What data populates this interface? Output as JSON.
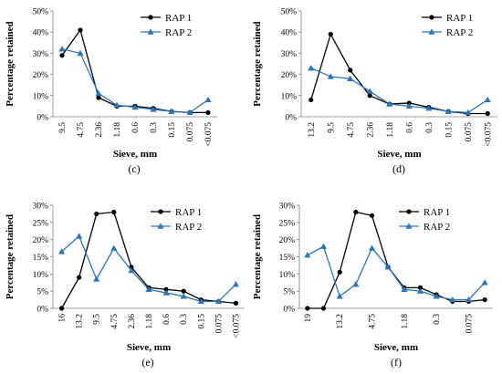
{
  "chart_data": [
    {
      "panel": "c",
      "type": "line",
      "caption": "(c)",
      "categories": [
        "9.5",
        "4.75",
        "2.36",
        "1.18",
        "0.6",
        "0.3",
        "0.15",
        "0.075",
        "<0.075"
      ],
      "ylabel": "Percentage retained",
      "xlabel": "Sieve, mm",
      "ylim": [
        0,
        50
      ],
      "yticks": [
        "0%",
        "10%",
        "20%",
        "30%",
        "40%",
        "50%"
      ],
      "yticks_values": [
        0,
        10,
        20,
        30,
        40,
        50
      ],
      "legend": "top-right",
      "series": [
        {
          "name": "RAP 1",
          "color": "#000000",
          "marker": "circle",
          "values": [
            29,
            41,
            9,
            5,
            5,
            4,
            2.5,
            2,
            2
          ]
        },
        {
          "name": "RAP 2",
          "color": "#2e75b6",
          "marker": "triangle",
          "values": [
            32,
            30,
            11,
            5.5,
            4.5,
            3.5,
            2.5,
            2,
            8
          ]
        }
      ]
    },
    {
      "panel": "d",
      "type": "line",
      "caption": "(d)",
      "categories": [
        "13.2",
        "9.5",
        "4.75",
        "2.36",
        "1.18",
        "0.6",
        "0.3",
        "0.15",
        "0.075",
        "<0.075"
      ],
      "ylabel": "Percentage retained",
      "xlabel": "Sieve, mm",
      "ylim": [
        0,
        50
      ],
      "yticks": [
        "0%",
        "10%",
        "20%",
        "30%",
        "40%",
        "50%"
      ],
      "yticks_values": [
        0,
        10,
        20,
        30,
        40,
        50
      ],
      "legend": "top-right",
      "series": [
        {
          "name": "RAP 1",
          "color": "#000000",
          "marker": "circle",
          "values": [
            8,
            39,
            22,
            10,
            6,
            6.5,
            4.5,
            2.5,
            1.5,
            1.5
          ]
        },
        {
          "name": "RAP 2",
          "color": "#2e75b6",
          "marker": "triangle",
          "values": [
            23,
            19,
            18,
            12,
            6,
            5,
            4,
            2.5,
            2,
            8
          ]
        }
      ]
    },
    {
      "panel": "e",
      "type": "line",
      "caption": "(e)",
      "categories": [
        "16",
        "13.2",
        "9.5",
        "4.75",
        "2.36",
        "1.18",
        "0.6",
        "0.3",
        "0.15",
        "0.075",
        "<0.075"
      ],
      "ylabel": "Percentage retained",
      "xlabel": "Sieve, mm",
      "ylim": [
        0,
        30
      ],
      "yticks": [
        "0%",
        "5%",
        "10%",
        "15%",
        "20%",
        "25%",
        "30%"
      ],
      "yticks_values": [
        0,
        5,
        10,
        15,
        20,
        25,
        30
      ],
      "legend": "top-right",
      "series": [
        {
          "name": "RAP 1",
          "color": "#000000",
          "marker": "circle",
          "values": [
            0,
            9,
            27.5,
            28,
            12,
            6,
            5.5,
            5,
            2.5,
            2,
            1.5
          ]
        },
        {
          "name": "RAP 2",
          "color": "#2e75b6",
          "marker": "triangle",
          "values": [
            16.5,
            21,
            8.5,
            17.5,
            11,
            5.5,
            4.5,
            3.5,
            2,
            2,
            7
          ]
        }
      ]
    },
    {
      "panel": "f",
      "type": "line",
      "caption": "(f)",
      "categories": [
        "19",
        "",
        "13.2",
        "",
        "4.75",
        "",
        "1.18",
        "",
        "0.3",
        "",
        "0.075",
        ""
      ],
      "ylabel": "Percentage retained",
      "xlabel": "Sieve, mm",
      "ylim": [
        0,
        30
      ],
      "yticks": [
        "0%",
        "5%",
        "10%",
        "15%",
        "20%",
        "25%",
        "30%"
      ],
      "yticks_values": [
        0,
        5,
        10,
        15,
        20,
        25,
        30
      ],
      "legend": "top-right",
      "series": [
        {
          "name": "RAP 1",
          "color": "#000000",
          "marker": "circle",
          "values": [
            0,
            0,
            10.5,
            28,
            27,
            12,
            6,
            6,
            4,
            2,
            2,
            2.5
          ]
        },
        {
          "name": "RAP 2",
          "color": "#2e75b6",
          "marker": "triangle",
          "values": [
            15.5,
            18,
            3.5,
            7,
            17.5,
            12,
            5.5,
            5,
            3.5,
            2.5,
            2.5,
            7.5
          ]
        }
      ]
    }
  ]
}
